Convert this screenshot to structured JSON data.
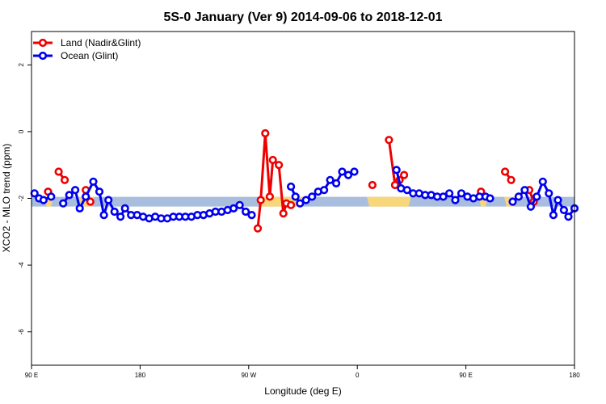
{
  "chart_data": {
    "type": "line",
    "title": "5S-0 January (Ver 9)   2014-09-06 to 2018-12-01",
    "xlabel": "Longitude (deg E)",
    "ylabel": "XCO2 - MLO trend (ppm)",
    "xlim": [
      90,
      450
    ],
    "ylim": [
      -7,
      3
    ],
    "x_ticks": [
      {
        "value": 90,
        "label": "90 E"
      },
      {
        "value": 162,
        "label": "180"
      },
      {
        "value": 234,
        "label": "90 W"
      },
      {
        "value": 306,
        "label": "0"
      },
      {
        "value": 378,
        "label": "90 E"
      },
      {
        "value": 450,
        "label": "180"
      }
    ],
    "y_ticks": [
      {
        "value": 2,
        "label": "2"
      },
      {
        "value": 0,
        "label": "0"
      },
      {
        "value": -2,
        "label": "-2"
      },
      {
        "value": -4,
        "label": "-4"
      },
      {
        "value": -6,
        "label": "-6"
      }
    ],
    "grid": false,
    "legend_position": "top-left",
    "band": {
      "y": -2.1,
      "ocean_color": "#a9bede",
      "land_color": "#f7d77a",
      "land_segments": [
        [
          100,
          103
        ],
        [
          123,
          130
        ],
        [
          242,
          270
        ],
        [
          314,
          340
        ],
        [
          388,
          391
        ],
        [
          405,
          410
        ]
      ]
    },
    "series": [
      {
        "name": "Land (Nadir&Glint)",
        "color": "#ee0000",
        "segments": [
          [
            [
              101,
              -1.8
            ]
          ],
          [
            [
              108,
              -1.2
            ],
            [
              112,
              -1.45
            ]
          ],
          [
            [
              126,
              -1.75
            ],
            [
              129,
              -2.1
            ]
          ],
          [
            [
              240,
              -2.9
            ],
            [
              242,
              -2.05
            ],
            [
              245,
              -0.05
            ],
            [
              248,
              -1.95
            ],
            [
              250,
              -0.85
            ],
            [
              254,
              -1.0
            ],
            [
              257,
              -2.45
            ],
            [
              259,
              -2.15
            ],
            [
              262,
              -2.2
            ]
          ],
          [
            [
              316,
              -1.6
            ]
          ],
          [
            [
              327,
              -0.25
            ],
            [
              331,
              -1.6
            ],
            [
              334,
              -1.45
            ],
            [
              337,
              -1.3
            ]
          ],
          [
            [
              388,
              -1.8
            ]
          ],
          [
            [
              404,
              -1.2
            ],
            [
              408,
              -1.45
            ]
          ],
          [
            [
              420,
              -1.75
            ],
            [
              423,
              -2.1
            ]
          ]
        ]
      },
      {
        "name": "Ocean (Glint)",
        "color": "#0000ee",
        "segments": [
          [
            [
              92,
              -1.85
            ],
            [
              95,
              -2.0
            ],
            [
              98,
              -2.05
            ],
            [
              103,
              -1.95
            ]
          ],
          [
            [
              111,
              -2.15
            ],
            [
              115,
              -1.9
            ],
            [
              119,
              -1.75
            ],
            [
              122,
              -2.3
            ],
            [
              126,
              -1.95
            ],
            [
              131,
              -1.5
            ],
            [
              135,
              -1.8
            ],
            [
              138,
              -2.5
            ],
            [
              141,
              -2.05
            ],
            [
              145,
              -2.4
            ],
            [
              149,
              -2.55
            ],
            [
              152,
              -2.3
            ],
            [
              156,
              -2.5
            ],
            [
              160,
              -2.5
            ],
            [
              164,
              -2.55
            ],
            [
              168,
              -2.6
            ],
            [
              172,
              -2.55
            ],
            [
              176,
              -2.6
            ],
            [
              180,
              -2.6
            ],
            [
              184,
              -2.55
            ],
            [
              188,
              -2.55
            ],
            [
              192,
              -2.55
            ],
            [
              196,
              -2.55
            ],
            [
              200,
              -2.5
            ],
            [
              204,
              -2.5
            ],
            [
              208,
              -2.45
            ],
            [
              212,
              -2.4
            ],
            [
              216,
              -2.4
            ],
            [
              220,
              -2.35
            ],
            [
              224,
              -2.3
            ],
            [
              228,
              -2.2
            ],
            [
              232,
              -2.4
            ],
            [
              236,
              -2.5
            ]
          ],
          [
            [
              262,
              -1.65
            ],
            [
              265,
              -1.95
            ],
            [
              268,
              -2.15
            ],
            [
              272,
              -2.05
            ],
            [
              276,
              -1.95
            ],
            [
              280,
              -1.8
            ],
            [
              284,
              -1.75
            ],
            [
              288,
              -1.45
            ],
            [
              292,
              -1.55
            ],
            [
              296,
              -1.2
            ],
            [
              300,
              -1.3
            ],
            [
              304,
              -1.2
            ]
          ],
          [
            [
              332,
              -1.15
            ],
            [
              335,
              -1.7
            ],
            [
              339,
              -1.75
            ],
            [
              343,
              -1.85
            ],
            [
              347,
              -1.85
            ],
            [
              351,
              -1.9
            ],
            [
              355,
              -1.9
            ],
            [
              359,
              -1.95
            ],
            [
              363,
              -1.95
            ],
            [
              367,
              -1.85
            ],
            [
              371,
              -2.05
            ],
            [
              375,
              -1.85
            ],
            [
              379,
              -1.95
            ],
            [
              383,
              -2.0
            ],
            [
              387,
              -1.95
            ],
            [
              391,
              -1.95
            ],
            [
              394,
              -2.0
            ]
          ],
          [
            [
              409,
              -2.1
            ],
            [
              413,
              -1.95
            ],
            [
              417,
              -1.75
            ],
            [
              421,
              -2.25
            ],
            [
              425,
              -1.95
            ],
            [
              429,
              -1.5
            ],
            [
              433,
              -1.85
            ],
            [
              436,
              -2.5
            ],
            [
              439,
              -2.05
            ],
            [
              443,
              -2.35
            ],
            [
              446,
              -2.55
            ],
            [
              450,
              -2.3
            ]
          ]
        ]
      }
    ]
  }
}
